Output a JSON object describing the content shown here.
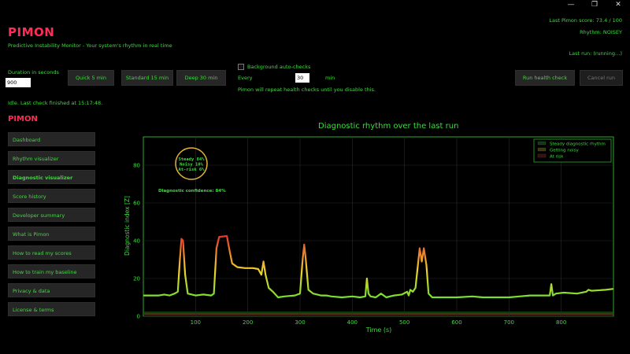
{
  "window": {
    "minimize": "—",
    "restore": "❐",
    "close": "✕"
  },
  "app": {
    "title": "PIMON",
    "subtitle": "Predictive Instability Monitor - Your system's rhythm in real time"
  },
  "status": {
    "score": "Last Pimon score: 73.4 / 100",
    "rhythm": "Rhythm: NOISEY",
    "last_run": "Last run: (running…)",
    "idle": "Idle. Last check finished at 15:17:48."
  },
  "controls": {
    "duration_label": "Duration in seconds",
    "duration_value": "900",
    "quick_label": "Quick 5 min",
    "standard_label": "Standard 15 min",
    "deep_label": "Deep 30 min",
    "background_label": "Background auto-checks",
    "every_label": "Every",
    "every_value": "30",
    "min_label": "min",
    "repeat_note": "Pimon will repeat health checks until you disable this.",
    "run_label": "Run health check",
    "cancel_label": "Cancel run"
  },
  "nav": {
    "heading": "PIMON",
    "items": [
      {
        "label": "Dashboard"
      },
      {
        "label": "Rhythm visualizer"
      },
      {
        "label": "Diagnostic visualizer"
      },
      {
        "label": "Score history"
      },
      {
        "label": "Developer summary"
      },
      {
        "label": "What is Pimon"
      },
      {
        "label": "How to read my scores"
      },
      {
        "label": "How to train my baseline"
      },
      {
        "label": "Privacy & data"
      },
      {
        "label": "License & terms"
      }
    ],
    "active_index": 2
  },
  "colors": {
    "background": "#000000",
    "accent_green": "#3ddc3d",
    "brand_red": "#ff2d55",
    "chart_frame": "#2fa82f",
    "badge_ring": "#e6b33a",
    "steady_band": "#0d3a10",
    "noisy_band": "#3a3a0e",
    "risk_band": "#3a0e0e"
  },
  "chart_data": {
    "type": "line",
    "title": "Diagnostic rhythm over the last run",
    "xlabel": "Time (s)",
    "ylabel": "Diagnostic index [Z]",
    "xlim": [
      0,
      900
    ],
    "ylim": [
      0,
      95
    ],
    "xticks": [
      100,
      200,
      300,
      400,
      500,
      600,
      700,
      800
    ],
    "yticks": [
      0,
      20,
      40,
      60,
      80
    ],
    "grid": true,
    "legend_position": "top-right",
    "legend": [
      "Steady diagnostic rhythm",
      "Getting noisy",
      "At risk"
    ],
    "annotation": {
      "badge_lines": [
        "Steady  84%",
        "Noisy   10%",
        "At-risk  6%"
      ],
      "confidence": "Diagnostic confidence: 84%"
    },
    "points": [
      [
        0,
        11
      ],
      [
        30,
        11
      ],
      [
        40,
        11.5
      ],
      [
        50,
        11
      ],
      [
        60,
        12
      ],
      [
        66,
        13
      ],
      [
        70,
        30
      ],
      [
        73,
        41
      ],
      [
        76,
        40
      ],
      [
        80,
        22
      ],
      [
        85,
        12
      ],
      [
        100,
        11
      ],
      [
        115,
        11.5
      ],
      [
        130,
        11
      ],
      [
        135,
        12
      ],
      [
        140,
        36
      ],
      [
        145,
        42
      ],
      [
        160,
        42.5
      ],
      [
        165,
        35
      ],
      [
        170,
        28
      ],
      [
        180,
        26
      ],
      [
        195,
        25.5
      ],
      [
        210,
        25.5
      ],
      [
        220,
        25
      ],
      [
        226,
        22
      ],
      [
        230,
        29
      ],
      [
        234,
        22
      ],
      [
        240,
        15
      ],
      [
        248,
        13
      ],
      [
        258,
        10
      ],
      [
        270,
        10.5
      ],
      [
        290,
        11
      ],
      [
        300,
        12
      ],
      [
        305,
        30
      ],
      [
        308,
        38
      ],
      [
        311,
        30
      ],
      [
        316,
        14
      ],
      [
        325,
        12
      ],
      [
        340,
        11
      ],
      [
        350,
        11
      ],
      [
        360,
        10.5
      ],
      [
        380,
        10
      ],
      [
        400,
        10.5
      ],
      [
        415,
        10
      ],
      [
        425,
        10.5
      ],
      [
        428,
        20
      ],
      [
        431,
        12
      ],
      [
        435,
        10.5
      ],
      [
        445,
        10
      ],
      [
        455,
        12
      ],
      [
        465,
        10
      ],
      [
        480,
        11
      ],
      [
        495,
        11.5
      ],
      [
        505,
        13
      ],
      [
        508,
        11
      ],
      [
        511,
        14
      ],
      [
        516,
        13
      ],
      [
        521,
        15
      ],
      [
        526,
        28
      ],
      [
        529,
        36
      ],
      [
        533,
        29
      ],
      [
        537,
        36
      ],
      [
        542,
        27
      ],
      [
        546,
        12
      ],
      [
        553,
        10
      ],
      [
        570,
        10
      ],
      [
        600,
        10
      ],
      [
        630,
        10.5
      ],
      [
        650,
        10
      ],
      [
        680,
        10
      ],
      [
        700,
        10
      ],
      [
        720,
        10.5
      ],
      [
        740,
        11
      ],
      [
        765,
        11
      ],
      [
        778,
        11
      ],
      [
        781,
        17
      ],
      [
        784,
        11
      ],
      [
        790,
        12
      ],
      [
        805,
        12.5
      ],
      [
        830,
        12
      ],
      [
        848,
        13
      ],
      [
        852,
        14
      ],
      [
        858,
        13.5
      ],
      [
        885,
        14
      ],
      [
        900,
        14.5
      ]
    ]
  }
}
